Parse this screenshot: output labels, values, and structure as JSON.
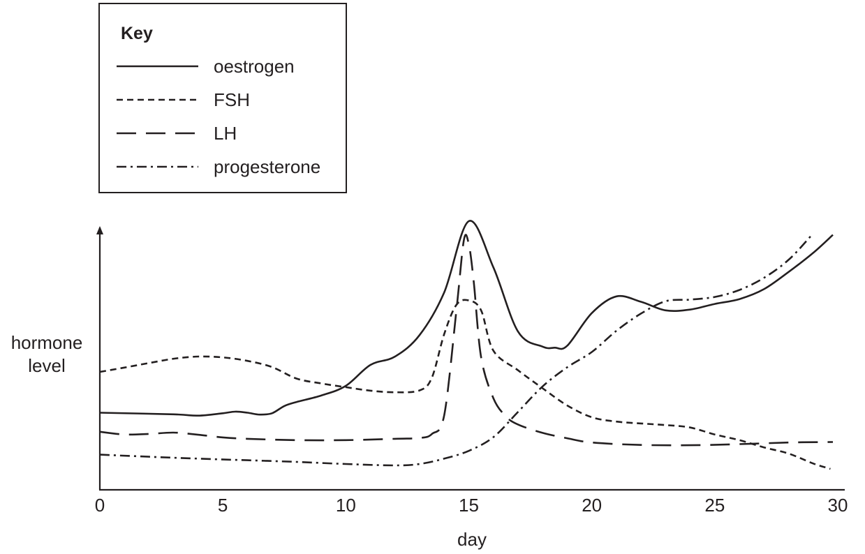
{
  "chart_data": {
    "type": "line",
    "title": "",
    "xlabel": "day",
    "ylabel": [
      "hormone",
      "level"
    ],
    "xlim": [
      0,
      30
    ],
    "x_ticks": [
      0,
      5,
      10,
      15,
      20,
      25,
      30
    ],
    "y_ticks": [],
    "y_unit": "relative level (0 = baseline, 100 = top of axis)",
    "ylim": [
      0,
      100
    ],
    "grid": false,
    "legend": {
      "title": "Key",
      "position": "top-left",
      "entries": [
        "oestrogen",
        "FSH",
        "LH",
        "progesterone"
      ]
    },
    "series": [
      {
        "name": "oestrogen",
        "color": "#231f20",
        "dash": "solid",
        "points": [
          [
            0,
            28.7
          ],
          [
            3,
            28.1
          ],
          [
            4,
            27.6
          ],
          [
            5,
            28.5
          ],
          [
            5.5,
            29.1
          ],
          [
            6,
            28.7
          ],
          [
            6.5,
            28
          ],
          [
            7,
            28.5
          ],
          [
            7.5,
            31.2
          ],
          [
            8,
            32.7
          ],
          [
            9,
            35.1
          ],
          [
            10,
            38.7
          ],
          [
            11,
            46.5
          ],
          [
            12,
            49.6
          ],
          [
            13,
            57.6
          ],
          [
            14,
            73.5
          ],
          [
            15,
            100
          ],
          [
            16,
            82.8
          ],
          [
            17,
            58.9
          ],
          [
            18,
            53.3
          ],
          [
            18.5,
            52.9
          ],
          [
            19,
            53.6
          ],
          [
            20,
            65.8
          ],
          [
            21,
            72
          ],
          [
            22,
            70
          ],
          [
            23,
            66.8
          ],
          [
            24,
            67.1
          ],
          [
            25,
            69.2
          ],
          [
            26,
            71
          ],
          [
            27,
            74.7
          ],
          [
            28,
            81.1
          ],
          [
            29,
            88.2
          ],
          [
            29.8,
            94.9
          ]
        ]
      },
      {
        "name": "FSH",
        "color": "#231f20",
        "dash": "short",
        "points": [
          [
            0,
            43.9
          ],
          [
            1,
            45.5
          ],
          [
            2,
            47.2
          ],
          [
            3,
            48.8
          ],
          [
            4,
            49.6
          ],
          [
            5,
            49.3
          ],
          [
            6,
            48
          ],
          [
            7,
            45.7
          ],
          [
            8,
            41.4
          ],
          [
            9,
            39.6
          ],
          [
            10,
            38.2
          ],
          [
            11,
            36.9
          ],
          [
            12,
            36.3
          ],
          [
            13,
            37
          ],
          [
            13.5,
            41.8
          ],
          [
            14,
            58
          ],
          [
            14.5,
            68.9
          ],
          [
            15,
            70.5
          ],
          [
            15.5,
            66.8
          ],
          [
            16,
            51.8
          ],
          [
            17,
            44.5
          ],
          [
            18,
            37.8
          ],
          [
            19,
            31.4
          ],
          [
            20,
            27
          ],
          [
            21,
            25.4
          ],
          [
            22,
            24.7
          ],
          [
            23,
            24.1
          ],
          [
            24,
            23.2
          ],
          [
            25,
            20.6
          ],
          [
            26,
            18.5
          ],
          [
            27,
            15.8
          ],
          [
            28,
            13.5
          ],
          [
            29,
            9.8
          ],
          [
            29.7,
            7.8
          ]
        ]
      },
      {
        "name": "LH",
        "color": "#231f20",
        "dash": "long",
        "points": [
          [
            0,
            21.6
          ],
          [
            1,
            20.6
          ],
          [
            2,
            20.8
          ],
          [
            3,
            21.3
          ],
          [
            4,
            20.5
          ],
          [
            5,
            19.5
          ],
          [
            6,
            19
          ],
          [
            8,
            18.5
          ],
          [
            10,
            18.5
          ],
          [
            12,
            19
          ],
          [
            13,
            19.3
          ],
          [
            13.5,
            20.8
          ],
          [
            14,
            27.8
          ],
          [
            14.5,
            67.2
          ],
          [
            14.8,
            93
          ],
          [
            15,
            91.4
          ],
          [
            15.2,
            77.6
          ],
          [
            15.5,
            49.4
          ],
          [
            16,
            34.1
          ],
          [
            16.5,
            27.4
          ],
          [
            17,
            24.3
          ],
          [
            18,
            21.2
          ],
          [
            19,
            19.2
          ],
          [
            20,
            17.6
          ],
          [
            22,
            16.7
          ],
          [
            24,
            16.6
          ],
          [
            26,
            17
          ],
          [
            28,
            17.6
          ],
          [
            29.8,
            17.8
          ]
        ]
      },
      {
        "name": "progesterone",
        "color": "#231f20",
        "dash": "dash-dot",
        "points": [
          [
            0,
            13.1
          ],
          [
            2,
            12.3
          ],
          [
            4,
            11.6
          ],
          [
            6,
            11
          ],
          [
            8,
            10.4
          ],
          [
            10,
            9.6
          ],
          [
            12,
            9.1
          ],
          [
            13,
            9.6
          ],
          [
            14,
            11.6
          ],
          [
            15,
            14.5
          ],
          [
            16,
            19.6
          ],
          [
            17,
            29
          ],
          [
            18,
            38.5
          ],
          [
            19,
            45.6
          ],
          [
            20,
            51.3
          ],
          [
            21,
            59.2
          ],
          [
            22,
            65.6
          ],
          [
            23,
            70.2
          ],
          [
            24,
            70.8
          ],
          [
            25,
            71.8
          ],
          [
            26,
            74.4
          ],
          [
            27,
            78.9
          ],
          [
            28,
            85.6
          ],
          [
            28.9,
            94.4
          ]
        ]
      }
    ]
  }
}
